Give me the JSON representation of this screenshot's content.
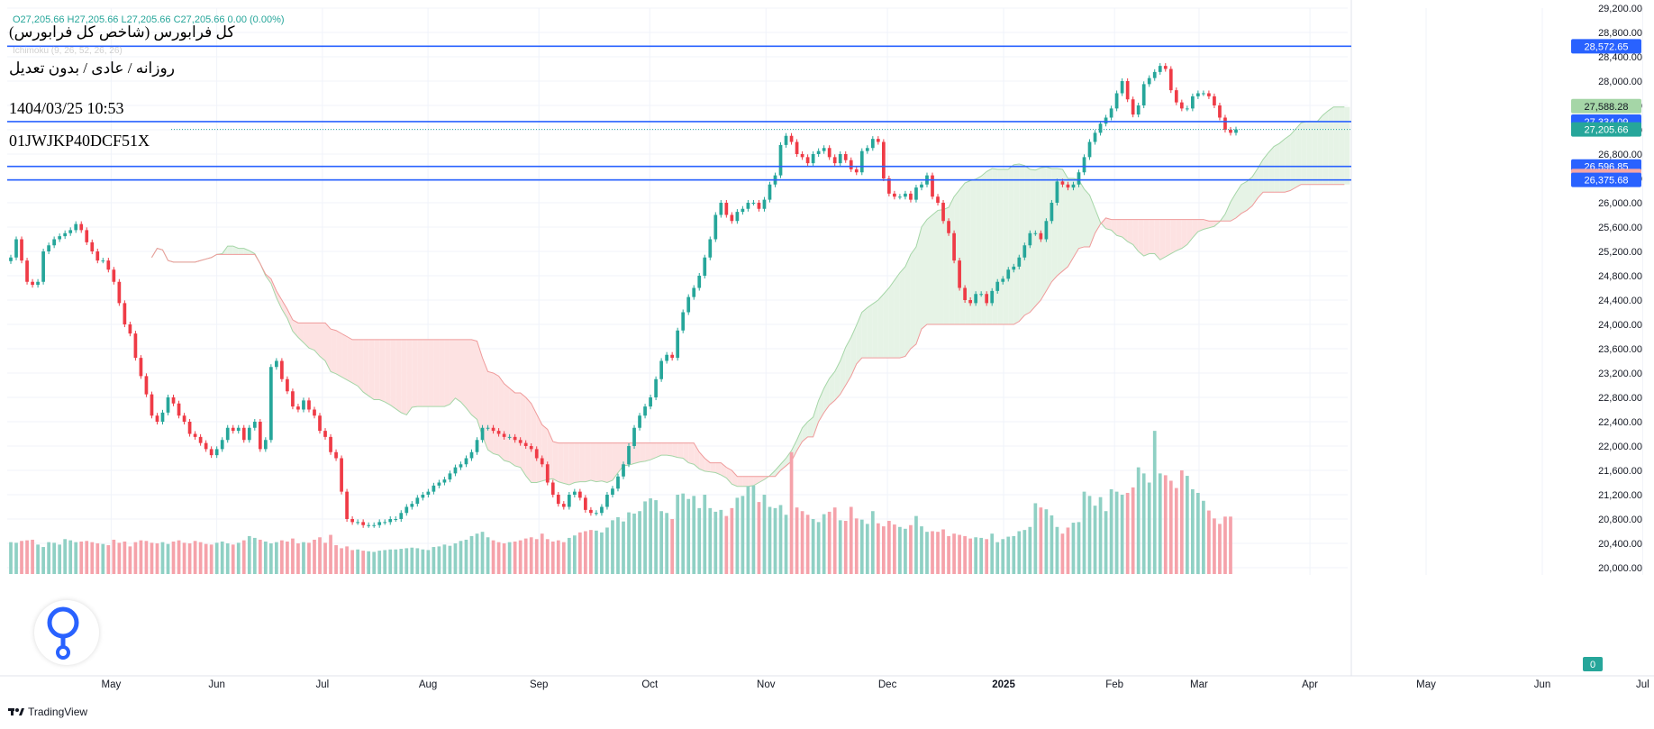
{
  "header": {
    "ohlc_line": "O27,205.66  H27,205.66  L27,205.66  C27,205.66  0.00 (0.00%)",
    "ichimoku_label": "Ichimoku (9, 26, 52, 26, 26)",
    "title": "کل فرابورس (شاخص کل فرابورس)",
    "subtitle": "روزانه / عادی / بدون تعدیل",
    "datetime": "1404/03/25 10:53",
    "code": "01JWJKP40DCF51X"
  },
  "brand": {
    "name": "TradingView"
  },
  "colors": {
    "up": "#26a69a",
    "down": "#ef3b46",
    "up_volume": "#8fd0c4",
    "down_volume": "#f5a2aa",
    "hline": "#2962ff",
    "cloud_bull": "#e6f3e6",
    "cloud_bear": "#fde2e2",
    "span_a": "#a5d6a7",
    "span_b": "#ef9a9a"
  },
  "chart_data": {
    "type": "candlestick",
    "y_ticks": [
      "29,200.00",
      "28,800.00",
      "28,400.00",
      "28,000.00",
      "27,600.00",
      "27,200.00",
      "26,800.00",
      "26,400.00",
      "26,000.00",
      "25,600.00",
      "25,200.00",
      "24,800.00",
      "24,400.00",
      "24,000.00",
      "23,600.00",
      "23,200.00",
      "22,800.00",
      "22,400.00",
      "22,000.00",
      "21,600.00",
      "21,200.00",
      "20,800.00",
      "20,400.00",
      "20,000.00"
    ],
    "x_ticks": [
      "May",
      "Jun",
      "Jul",
      "Aug",
      "Sep",
      "Oct",
      "Nov",
      "Dec",
      "2025",
      "Feb",
      "Mar",
      "Apr",
      "May",
      "Jun",
      "Jul"
    ],
    "ylim": [
      20000,
      29200
    ],
    "horizontal_lines": [
      28572.65,
      27334.09,
      26596.85,
      26375.68
    ],
    "price_labels": [
      {
        "text": "28,572.65",
        "kind": "hline"
      },
      {
        "text": "27,588.28",
        "kind": "span_a"
      },
      {
        "text": "27,334.09",
        "kind": "hline"
      },
      {
        "text": "27,205.66",
        "kind": "last"
      },
      {
        "text": "26,596.85",
        "kind": "hline"
      },
      {
        "text": "26,439.51",
        "kind": "span_b"
      },
      {
        "text": "26,375.68",
        "kind": "hline"
      },
      {
        "text": "0",
        "kind": "volume"
      }
    ],
    "last_price": 27205.66,
    "closes": [
      25100,
      25400,
      25050,
      24700,
      24650,
      24700,
      25200,
      25300,
      25400,
      25450,
      25500,
      25550,
      25650,
      25550,
      25350,
      25200,
      25050,
      25050,
      24900,
      24700,
      24350,
      24000,
      23850,
      23450,
      23150,
      22850,
      22500,
      22400,
      22550,
      22800,
      22700,
      22500,
      22400,
      22200,
      22150,
      22050,
      21950,
      21850,
      21950,
      22100,
      22300,
      22250,
      22300,
      22100,
      22300,
      22400,
      21950,
      22100,
      23300,
      23400,
      23100,
      22900,
      22650,
      22600,
      22750,
      22600,
      22500,
      22250,
      22150,
      21900,
      21800,
      21250,
      20800,
      20750,
      20750,
      20700,
      20700,
      20700,
      20750,
      20750,
      20800,
      20800,
      20900,
      21000,
      21050,
      21150,
      21200,
      21250,
      21350,
      21400,
      21450,
      21550,
      21650,
      21700,
      21800,
      21900,
      22100,
      22300,
      22300,
      22250,
      22200,
      22150,
      22150,
      22100,
      22050,
      22000,
      21950,
      21800,
      21700,
      21400,
      21200,
      21050,
      21000,
      21200,
      21250,
      21150,
      20950,
      20900,
      20900,
      21000,
      21200,
      21300,
      21500,
      21700,
      22000,
      22300,
      22500,
      22650,
      22800,
      23100,
      23400,
      23500,
      23450,
      23900,
      24200,
      24450,
      24600,
      24800,
      25100,
      25400,
      25800,
      26000,
      25800,
      25700,
      25850,
      25900,
      26000,
      26000,
      25900,
      26050,
      26300,
      26450,
      26950,
      27100,
      27000,
      26800,
      26750,
      26650,
      26800,
      26850,
      26900,
      26750,
      26650,
      26800,
      26700,
      26550,
      26500,
      26850,
      26900,
      27050,
      27000,
      26400,
      26150,
      26100,
      26100,
      26150,
      26050,
      26250,
      26300,
      26450,
      26100,
      26000,
      25700,
      25500,
      25050,
      24600,
      24400,
      24350,
      24500,
      24500,
      24350,
      24550,
      24700,
      24750,
      24900,
      24950,
      25100,
      25300,
      25500,
      25500,
      25400,
      25700,
      26000,
      26350,
      26300,
      26250,
      26300,
      26500,
      26750,
      27000,
      27150,
      27300,
      27400,
      27550,
      27800,
      28000,
      27700,
      27450,
      27600,
      27950,
      28050,
      28150,
      28250,
      28200,
      27850,
      27650,
      27550,
      27550,
      27750,
      27800,
      27800,
      27750,
      27600,
      27400,
      27200,
      27150,
      27205.66
    ],
    "volumes": [
      20420,
      20410,
      20440,
      20450,
      20460,
      20380,
      20340,
      20420,
      20410,
      20380,
      20470,
      20450,
      20420,
      20430,
      20440,
      20420,
      20400,
      20390,
      20370,
      20460,
      20410,
      20430,
      20350,
      20420,
      20450,
      20440,
      20410,
      20400,
      20420,
      20390,
      20430,
      20450,
      20410,
      20400,
      20440,
      20420,
      20390,
      20380,
      20410,
      20430,
      20400,
      20380,
      20410,
      20450,
      20520,
      20490,
      20460,
      20430,
      20400,
      20420,
      20450,
      20430,
      20480,
      20400,
      20420,
      20410,
      20460,
      20500,
      20410,
      20540,
      20370,
      20320,
      20350,
      20290,
      20300,
      20280,
      20270,
      20260,
      20280,
      20290,
      20300,
      20300,
      20310,
      20320,
      20330,
      20320,
      20300,
      20290,
      20340,
      20350,
      20380,
      20360,
      20400,
      20440,
      20460,
      20520,
      20560,
      20590,
      20500,
      20450,
      20420,
      20400,
      20420,
      20430,
      20450,
      20480,
      20500,
      20470,
      20560,
      20470,
      20430,
      20450,
      20420,
      20490,
      20530,
      20580,
      20600,
      20620,
      20610,
      20580,
      20660,
      20780,
      20830,
      20760,
      20910,
      20890,
      20930,
      21090,
      21140,
      21110,
      20930,
      20900,
      20800,
      21200,
      21220,
      21130,
      21180,
      20980,
      21200,
      20980,
      20920,
      20950,
      20850,
      20980,
      21150,
      21180,
      21340,
      21350,
      21080,
      21200,
      21000,
      20980,
      21030,
      20870,
      21900,
      20990,
      20930,
      20870,
      20800,
      20750,
      20880,
      20920,
      20990,
      20780,
      20770,
      21000,
      20810,
      20790,
      20720,
      20930,
      20730,
      20680,
      20770,
      20710,
      20670,
      20640,
      20700,
      20850,
      20680,
      20590,
      20600,
      20590,
      20630,
      20520,
      20560,
      20540,
      20520,
      20480,
      20500,
      20490,
      20470,
      20560,
      20420,
      20470,
      20510,
      20520,
      20600,
      20620,
      20670,
      21060,
      20990,
      20960,
      20860,
      20670,
      20560,
      20660,
      20740,
      20750,
      21250,
      21180,
      21020,
      21160,
      20930,
      21290,
      21250,
      21200,
      21230,
      21320,
      21650,
      21550,
      21400,
      22250,
      21550,
      21520,
      21430,
      21310,
      21600,
      21510,
      21290,
      21230,
      21100,
      20940,
      20810,
      20720,
      20840,
      20840
    ]
  }
}
